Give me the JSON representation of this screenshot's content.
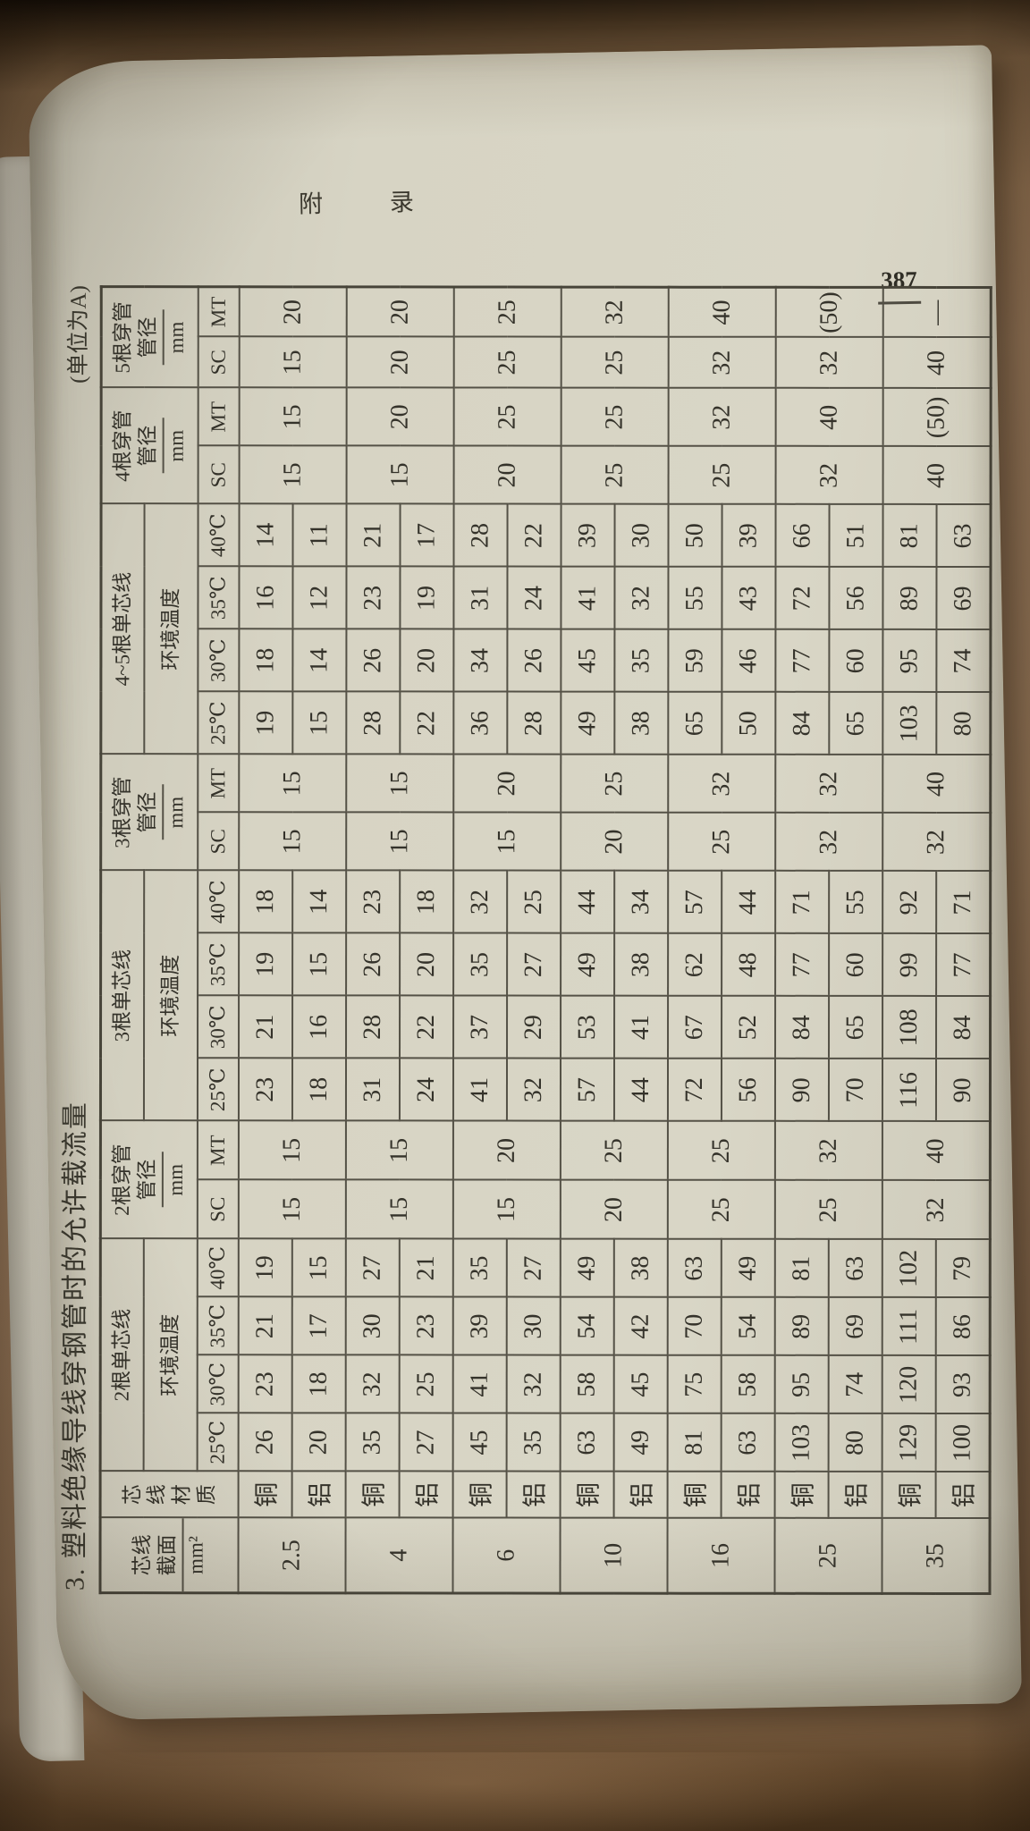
{
  "page": {
    "running_head": "附  录",
    "page_number": "387",
    "table_title": "3. 塑料绝缘导线穿钢管时的允许载流量",
    "unit_note": "(单位为A)"
  },
  "table": {
    "col_size_header": "芯线截面",
    "col_size_unit": "mm²",
    "col_material_header": "芯线材质",
    "temp_sub_header": "环境温度",
    "pipe_sub_header": "管径",
    "pipe_unit": "mm",
    "temps": [
      "25℃",
      "30℃",
      "35℃",
      "40℃"
    ],
    "pipe_cols": [
      "SC",
      "MT"
    ],
    "groups": {
      "wires2": "2根单芯线",
      "pipe2": "2根穿管",
      "wires3": "3根单芯线",
      "pipe3": "3根穿管",
      "wires45": "4~5根单芯线",
      "pipe4": "4根穿管",
      "pipe5": "5根穿管"
    },
    "materials": [
      "铜",
      "铝"
    ],
    "rows": [
      {
        "size": "2.5",
        "cu": {
          "n2": [
            26,
            23,
            21,
            19
          ],
          "n3": [
            23,
            21,
            19,
            18
          ],
          "n45": [
            19,
            18,
            16,
            14
          ]
        },
        "al": {
          "n2": [
            20,
            18,
            17,
            15
          ],
          "n3": [
            18,
            16,
            15,
            14
          ],
          "n45": [
            15,
            14,
            12,
            11
          ]
        },
        "p2": {
          "sc": "15",
          "mt": "15"
        },
        "p3": {
          "sc": "15",
          "mt": "15"
        },
        "p4": {
          "sc": "15",
          "mt": "15"
        },
        "p5": {
          "sc": "15",
          "mt": "20"
        }
      },
      {
        "size": "4",
        "cu": {
          "n2": [
            35,
            32,
            30,
            27
          ],
          "n3": [
            31,
            28,
            26,
            23
          ],
          "n45": [
            28,
            26,
            23,
            21
          ]
        },
        "al": {
          "n2": [
            27,
            25,
            23,
            21
          ],
          "n3": [
            24,
            22,
            20,
            18
          ],
          "n45": [
            22,
            20,
            19,
            17
          ]
        },
        "p2": {
          "sc": "15",
          "mt": "15"
        },
        "p3": {
          "sc": "15",
          "mt": "15"
        },
        "p4": {
          "sc": "15",
          "mt": "20"
        },
        "p5": {
          "sc": "20",
          "mt": "20"
        }
      },
      {
        "size": "6",
        "cu": {
          "n2": [
            45,
            41,
            39,
            35
          ],
          "n3": [
            41,
            37,
            35,
            32
          ],
          "n45": [
            36,
            34,
            31,
            28
          ]
        },
        "al": {
          "n2": [
            35,
            32,
            30,
            27
          ],
          "n3": [
            32,
            29,
            27,
            25
          ],
          "n45": [
            28,
            26,
            24,
            22
          ]
        },
        "p2": {
          "sc": "15",
          "mt": "20"
        },
        "p3": {
          "sc": "15",
          "mt": "20"
        },
        "p4": {
          "sc": "20",
          "mt": "25"
        },
        "p5": {
          "sc": "25",
          "mt": "25"
        }
      },
      {
        "size": "10",
        "cu": {
          "n2": [
            63,
            58,
            54,
            49
          ],
          "n3": [
            57,
            53,
            49,
            44
          ],
          "n45": [
            49,
            45,
            41,
            39
          ]
        },
        "al": {
          "n2": [
            49,
            45,
            42,
            38
          ],
          "n3": [
            44,
            41,
            38,
            34
          ],
          "n45": [
            38,
            35,
            32,
            30
          ]
        },
        "p2": {
          "sc": "20",
          "mt": "25"
        },
        "p3": {
          "sc": "20",
          "mt": "25"
        },
        "p4": {
          "sc": "25",
          "mt": "25"
        },
        "p5": {
          "sc": "25",
          "mt": "32"
        }
      },
      {
        "size": "16",
        "cu": {
          "n2": [
            81,
            75,
            70,
            63
          ],
          "n3": [
            72,
            67,
            62,
            57
          ],
          "n45": [
            65,
            59,
            55,
            50
          ]
        },
        "al": {
          "n2": [
            63,
            58,
            54,
            49
          ],
          "n3": [
            56,
            52,
            48,
            44
          ],
          "n45": [
            50,
            46,
            43,
            39
          ]
        },
        "p2": {
          "sc": "25",
          "mt": "25"
        },
        "p3": {
          "sc": "25",
          "mt": "32"
        },
        "p4": {
          "sc": "25",
          "mt": "32"
        },
        "p5": {
          "sc": "32",
          "mt": "40"
        }
      },
      {
        "size": "25",
        "cu": {
          "n2": [
            103,
            95,
            89,
            81
          ],
          "n3": [
            90,
            84,
            77,
            71
          ],
          "n45": [
            84,
            77,
            72,
            66
          ]
        },
        "al": {
          "n2": [
            80,
            74,
            69,
            63
          ],
          "n3": [
            70,
            65,
            60,
            55
          ],
          "n45": [
            65,
            60,
            56,
            51
          ]
        },
        "p2": {
          "sc": "25",
          "mt": "32"
        },
        "p3": {
          "sc": "32",
          "mt": "32"
        },
        "p4": {
          "sc": "32",
          "mt": "40"
        },
        "p5": {
          "sc": "32",
          "mt": "(50)"
        }
      },
      {
        "size": "35",
        "cu": {
          "n2": [
            129,
            120,
            111,
            102
          ],
          "n3": [
            116,
            108,
            99,
            92
          ],
          "n45": [
            103,
            95,
            89,
            81
          ]
        },
        "al": {
          "n2": [
            100,
            93,
            86,
            79
          ],
          "n3": [
            90,
            84,
            77,
            71
          ],
          "n45": [
            80,
            74,
            69,
            63
          ]
        },
        "p2": {
          "sc": "32",
          "mt": "40"
        },
        "p3": {
          "sc": "32",
          "mt": "40"
        },
        "p4": {
          "sc": "40",
          "mt": "(50)"
        },
        "p5": {
          "sc": "40",
          "mt": "—"
        }
      }
    ]
  }
}
